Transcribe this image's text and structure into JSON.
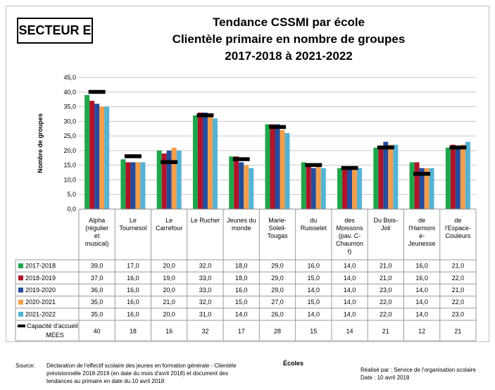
{
  "sector_label": "SECTEUR E",
  "title_lines": [
    "Tendance CSSMI par école",
    "Clientèle primaire en nombre de groupes",
    "2017-2018 à 2021-2022"
  ],
  "colors": {
    "series": [
      "#1fa64a",
      "#b0132a",
      "#244b9c",
      "#f29e4c",
      "#55b3d3"
    ],
    "capacity": "#000000"
  },
  "chart_data": {
    "type": "bar",
    "ylabel": "Nombre de groupes",
    "xlabel": "Écoles",
    "ylim": [
      0,
      45
    ],
    "yticks": [
      "0,0",
      "5,0",
      "10,0",
      "15,0",
      "20,0",
      "25,0",
      "30,0",
      "35,0",
      "40,0",
      "45,0"
    ],
    "grid": true,
    "categories": [
      [
        "Alpha",
        "(régulier",
        "et",
        "musical)"
      ],
      [
        "Le",
        "Tournesol"
      ],
      [
        "Le",
        "Carrefour"
      ],
      [
        "Le Rucher"
      ],
      [
        "Jeunes du",
        "monde"
      ],
      [
        "Marie-",
        "Soleil-",
        "Tougas"
      ],
      [
        "du",
        "Ruisselet"
      ],
      [
        "des",
        "Moissons",
        "(pav. C-",
        "Chaumon",
        "t)"
      ],
      [
        "Du Bois-",
        "Joli"
      ],
      [
        "de",
        "l'Harmoni",
        "e-",
        "Jeunesse"
      ],
      [
        "de",
        "l'Espace-",
        "Couleurs"
      ]
    ],
    "series": [
      {
        "name": "2017-2018",
        "values": [
          39,
          17,
          20,
          32,
          18,
          29,
          16,
          14,
          21,
          16,
          21
        ],
        "labels": [
          "39,0",
          "17,0",
          "20,0",
          "32,0",
          "18,0",
          "29,0",
          "16,0",
          "14,0",
          "21,0",
          "16,0",
          "21,0"
        ]
      },
      {
        "name": "2018-2019",
        "values": [
          37,
          16,
          19,
          33,
          18,
          29,
          15,
          14,
          21,
          16,
          22
        ],
        "labels": [
          "37,0",
          "16,0",
          "19,0",
          "33,0",
          "18,0",
          "29,0",
          "15,0",
          "14,0",
          "21,0",
          "16,0",
          "22,0"
        ]
      },
      {
        "name": "2019-2020",
        "values": [
          36,
          16,
          20,
          33,
          16,
          29,
          14,
          14,
          23,
          14,
          21
        ],
        "labels": [
          "36,0",
          "16,0",
          "20,0",
          "33,0",
          "16,0",
          "29,0",
          "14,0",
          "14,0",
          "23,0",
          "14,0",
          "21,0"
        ]
      },
      {
        "name": "2020-2021",
        "values": [
          35,
          16,
          21,
          32,
          15,
          27,
          15,
          14,
          22,
          14,
          22
        ],
        "labels": [
          "35,0",
          "16,0",
          "21,0",
          "32,0",
          "15,0",
          "27,0",
          "15,0",
          "14,0",
          "22,0",
          "14,0",
          "22,0"
        ]
      },
      {
        "name": "2021-2022",
        "values": [
          35,
          16,
          20,
          31,
          14,
          26,
          14,
          14,
          22,
          14,
          23
        ],
        "labels": [
          "35,0",
          "16,0",
          "20,0",
          "31,0",
          "14,0",
          "26,0",
          "14,0",
          "14,0",
          "22,0",
          "14,0",
          "23,0"
        ]
      }
    ],
    "capacity": {
      "name_lines": [
        "Capacité d'accueil",
        "MEES"
      ],
      "values": [
        40,
        18,
        16,
        32,
        17,
        28,
        15,
        14,
        21,
        12,
        21
      ],
      "labels": [
        "40",
        "18",
        "16",
        "32",
        "17",
        "28",
        "15",
        "14",
        "21",
        "12",
        "21"
      ]
    }
  },
  "footer": {
    "source_label": "Source:",
    "source_lines": [
      "Déclaration de l'effectif scolaire des jeunes en formation générale - Clientèle",
      "prévisionnelle 2018-2019 (en date du mois d'avril 2018) et document des",
      "tendances au primaire en date du 10 avril 2018"
    ],
    "ecoles_label": "Écoles",
    "credit_lines": [
      "Réalisé par : Service de l'organisation scolaire",
      "Date : 10 avril 2018"
    ]
  }
}
